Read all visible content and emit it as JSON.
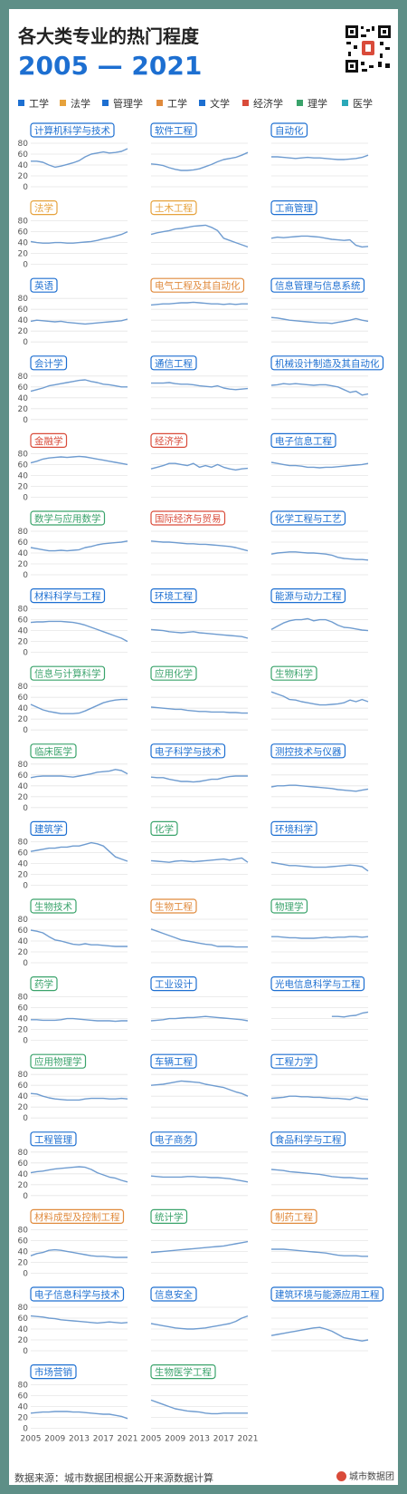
{
  "header": {
    "title": "各大类专业的热门程度",
    "years": "2005 — 2021"
  },
  "legend": [
    {
      "label": "工学",
      "color": "#1d6fd1"
    },
    {
      "label": "法学",
      "color": "#e6a23c"
    },
    {
      "label": "管理学",
      "color": "#1d6fd1"
    },
    {
      "label": "工学",
      "color": "#e08a3c"
    },
    {
      "label": "文学",
      "color": "#1d6fd1"
    },
    {
      "label": "经济学",
      "color": "#d94b3a"
    },
    {
      "label": "理学",
      "color": "#3aa36b"
    },
    {
      "label": "医学",
      "color": "#2aa8b8"
    }
  ],
  "footer": {
    "source": "数据来源：城市数据团根据公开来源数据计算",
    "brand": "城市数据团"
  },
  "chart_data": {
    "type": "line",
    "x": [
      2005,
      2006,
      2007,
      2008,
      2009,
      2010,
      2011,
      2012,
      2013,
      2014,
      2015,
      2016,
      2017,
      2018,
      2019,
      2020,
      2021
    ],
    "x_ticks": [
      "2005",
      "2009",
      "2013",
      "2017",
      "2021"
    ],
    "y_ticks": [
      "80",
      "60",
      "40",
      "20",
      "0"
    ],
    "ylim": [
      0,
      80
    ],
    "panels": [
      {
        "title": "计算机科学与技术",
        "color": "#1d6fd1",
        "values": [
          47,
          47,
          45,
          40,
          36,
          38,
          41,
          44,
          48,
          55,
          60,
          62,
          64,
          62,
          63,
          65,
          70
        ]
      },
      {
        "title": "软件工程",
        "color": "#1d6fd1",
        "values": [
          42,
          41,
          39,
          35,
          32,
          30,
          30,
          31,
          33,
          37,
          41,
          46,
          50,
          52,
          54,
          58,
          63
        ]
      },
      {
        "title": "自动化",
        "color": "#1d6fd1",
        "values": [
          55,
          55,
          54,
          53,
          52,
          53,
          54,
          53,
          53,
          52,
          51,
          50,
          50,
          51,
          52,
          54,
          58
        ]
      },
      {
        "title": "法学",
        "color": "#e6a23c",
        "values": [
          42,
          40,
          39,
          39,
          40,
          40,
          39,
          39,
          40,
          41,
          42,
          44,
          47,
          49,
          52,
          55,
          60
        ]
      },
      {
        "title": "土木工程",
        "color": "#e6a23c",
        "values": [
          55,
          58,
          60,
          62,
          65,
          66,
          68,
          70,
          71,
          72,
          68,
          62,
          48,
          44,
          40,
          36,
          32
        ]
      },
      {
        "title": "工商管理",
        "color": "#1d6fd1",
        "values": [
          48,
          50,
          49,
          50,
          51,
          52,
          52,
          51,
          50,
          48,
          46,
          45,
          44,
          45,
          35,
          32,
          33
        ]
      },
      {
        "title": "英语",
        "color": "#1d6fd1",
        "values": [
          38,
          40,
          39,
          38,
          37,
          38,
          36,
          35,
          34,
          33,
          34,
          35,
          36,
          37,
          38,
          39,
          42
        ]
      },
      {
        "title": "电气工程及其自动化",
        "color": "#e08a3c",
        "values": [
          68,
          69,
          70,
          70,
          71,
          72,
          72,
          73,
          72,
          71,
          70,
          70,
          69,
          70,
          69,
          70,
          70
        ]
      },
      {
        "title": "信息管理与信息系统",
        "color": "#1d6fd1",
        "values": [
          45,
          44,
          42,
          40,
          39,
          38,
          37,
          36,
          35,
          35,
          34,
          36,
          38,
          40,
          43,
          40,
          38
        ]
      },
      {
        "title": "会计学",
        "color": "#1d6fd1",
        "values": [
          52,
          55,
          58,
          62,
          64,
          66,
          68,
          70,
          72,
          73,
          70,
          68,
          65,
          64,
          62,
          60,
          60
        ]
      },
      {
        "title": "通信工程",
        "color": "#1d6fd1",
        "values": [
          67,
          67,
          67,
          68,
          66,
          65,
          65,
          64,
          62,
          61,
          60,
          62,
          58,
          56,
          55,
          56,
          57
        ]
      },
      {
        "title": "机械设计制造及其自动化",
        "color": "#1d6fd1",
        "values": [
          63,
          64,
          66,
          65,
          66,
          65,
          64,
          63,
          64,
          64,
          62,
          60,
          55,
          50,
          52,
          45,
          47
        ]
      },
      {
        "title": "金融学",
        "color": "#d94b3a",
        "values": [
          63,
          66,
          70,
          72,
          73,
          74,
          73,
          74,
          75,
          74,
          72,
          70,
          68,
          66,
          64,
          62,
          60
        ]
      },
      {
        "title": "经济学",
        "color": "#d94b3a",
        "values": [
          52,
          55,
          58,
          62,
          62,
          60,
          58,
          62,
          55,
          58,
          55,
          60,
          55,
          52,
          50,
          52,
          53
        ]
      },
      {
        "title": "电子信息工程",
        "color": "#1d6fd1",
        "values": [
          64,
          62,
          60,
          58,
          58,
          57,
          55,
          55,
          54,
          55,
          55,
          56,
          57,
          58,
          59,
          60,
          62
        ]
      },
      {
        "title": "数学与应用数学",
        "color": "#3aa36b",
        "values": [
          50,
          48,
          46,
          44,
          44,
          45,
          44,
          45,
          46,
          50,
          52,
          55,
          57,
          58,
          59,
          60,
          62
        ]
      },
      {
        "title": "国际经济与贸易",
        "color": "#d94b3a",
        "values": [
          62,
          61,
          60,
          60,
          59,
          58,
          57,
          57,
          56,
          56,
          55,
          54,
          53,
          52,
          50,
          47,
          44
        ]
      },
      {
        "title": "化学工程与工艺",
        "color": "#1d6fd1",
        "values": [
          38,
          40,
          41,
          42,
          42,
          41,
          40,
          40,
          39,
          38,
          36,
          32,
          30,
          29,
          28,
          28,
          27
        ]
      },
      {
        "title": "材料科学与工程",
        "color": "#1d6fd1",
        "values": [
          55,
          56,
          56,
          57,
          57,
          57,
          56,
          55,
          53,
          50,
          46,
          42,
          38,
          34,
          30,
          26,
          20
        ]
      },
      {
        "title": "环境工程",
        "color": "#1d6fd1",
        "values": [
          42,
          41,
          40,
          38,
          37,
          36,
          37,
          38,
          36,
          35,
          34,
          33,
          32,
          31,
          30,
          29,
          26
        ]
      },
      {
        "title": "能源与动力工程",
        "color": "#1d6fd1",
        "values": [
          42,
          48,
          54,
          58,
          60,
          60,
          62,
          58,
          60,
          60,
          56,
          50,
          46,
          45,
          43,
          41,
          40
        ]
      },
      {
        "title": "信息与计算科学",
        "color": "#3aa36b",
        "values": [
          47,
          42,
          37,
          34,
          32,
          30,
          30,
          30,
          31,
          35,
          40,
          45,
          50,
          53,
          55,
          56,
          56
        ]
      },
      {
        "title": "应用化学",
        "color": "#3aa36b",
        "values": [
          42,
          41,
          40,
          39,
          38,
          38,
          36,
          35,
          34,
          34,
          33,
          33,
          33,
          32,
          32,
          31,
          31
        ]
      },
      {
        "title": "生物科学",
        "color": "#3aa36b",
        "values": [
          70,
          66,
          62,
          56,
          55,
          52,
          50,
          48,
          46,
          46,
          47,
          48,
          50,
          55,
          52,
          56,
          52
        ]
      },
      {
        "title": "临床医学",
        "color": "#3aa36b",
        "values": [
          55,
          57,
          58,
          58,
          58,
          58,
          57,
          56,
          58,
          60,
          62,
          65,
          66,
          67,
          70,
          68,
          62
        ]
      },
      {
        "title": "电子科学与技术",
        "color": "#1d6fd1",
        "values": [
          56,
          55,
          55,
          52,
          50,
          48,
          48,
          47,
          48,
          50,
          52,
          52,
          55,
          57,
          58,
          58,
          58
        ]
      },
      {
        "title": "测控技术与仪器",
        "color": "#1d6fd1",
        "values": [
          38,
          40,
          40,
          41,
          41,
          40,
          39,
          38,
          37,
          36,
          35,
          33,
          32,
          31,
          30,
          32,
          34
        ]
      },
      {
        "title": "建筑学",
        "color": "#1d6fd1",
        "values": [
          62,
          64,
          66,
          68,
          68,
          70,
          70,
          72,
          72,
          75,
          78,
          76,
          72,
          62,
          52,
          48,
          44
        ]
      },
      {
        "title": "化学",
        "color": "#3aa36b",
        "values": [
          45,
          44,
          43,
          42,
          44,
          45,
          44,
          43,
          44,
          45,
          46,
          47,
          48,
          46,
          48,
          50,
          42
        ]
      },
      {
        "title": "环境科学",
        "color": "#1d6fd1",
        "values": [
          42,
          40,
          38,
          36,
          36,
          35,
          34,
          33,
          33,
          33,
          34,
          35,
          36,
          37,
          36,
          34,
          26
        ]
      },
      {
        "title": "生物技术",
        "color": "#3aa36b",
        "values": [
          60,
          58,
          55,
          48,
          42,
          40,
          37,
          34,
          33,
          35,
          33,
          33,
          32,
          31,
          30,
          30,
          30
        ]
      },
      {
        "title": "生物工程",
        "color": "#e08a3c",
        "values": [
          62,
          58,
          54,
          50,
          46,
          42,
          40,
          38,
          36,
          34,
          33,
          30,
          30,
          30,
          29,
          29,
          29
        ]
      },
      {
        "title": "物理学",
        "color": "#3aa36b",
        "values": [
          48,
          48,
          47,
          46,
          46,
          45,
          45,
          45,
          46,
          47,
          46,
          47,
          47,
          48,
          48,
          47,
          48
        ]
      },
      {
        "title": "药学",
        "color": "#3aa36b",
        "values": [
          38,
          38,
          37,
          37,
          37,
          38,
          40,
          40,
          39,
          38,
          37,
          36,
          36,
          36,
          35,
          36,
          36
        ]
      },
      {
        "title": "工业设计",
        "color": "#1d6fd1",
        "values": [
          36,
          37,
          38,
          40,
          40,
          41,
          42,
          42,
          43,
          44,
          43,
          42,
          41,
          40,
          39,
          38,
          36
        ]
      },
      {
        "title": "光电信息科学与工程",
        "color": "#1d6fd1",
        "values": [
          null,
          null,
          null,
          null,
          null,
          null,
          null,
          null,
          null,
          null,
          44,
          44,
          43,
          45,
          46,
          50,
          52
        ]
      },
      {
        "title": "应用物理学",
        "color": "#3aa36b",
        "values": [
          45,
          44,
          40,
          37,
          35,
          34,
          33,
          33,
          33,
          35,
          36,
          36,
          36,
          35,
          35,
          36,
          35
        ]
      },
      {
        "title": "车辆工程",
        "color": "#1d6fd1",
        "values": [
          60,
          61,
          62,
          64,
          66,
          68,
          67,
          66,
          65,
          62,
          60,
          58,
          56,
          52,
          48,
          45,
          40
        ]
      },
      {
        "title": "工程力学",
        "color": "#1d6fd1",
        "values": [
          36,
          37,
          38,
          40,
          40,
          39,
          39,
          38,
          38,
          37,
          36,
          36,
          35,
          34,
          38,
          35,
          34
        ]
      },
      {
        "title": "工程管理",
        "color": "#1d6fd1",
        "values": [
          42,
          44,
          45,
          47,
          49,
          50,
          51,
          52,
          53,
          52,
          48,
          42,
          38,
          34,
          32,
          28,
          25
        ]
      },
      {
        "title": "电子商务",
        "color": "#1d6fd1",
        "values": [
          36,
          35,
          34,
          34,
          34,
          34,
          35,
          35,
          34,
          34,
          33,
          33,
          32,
          31,
          29,
          27,
          25
        ]
      },
      {
        "title": "食品科学与工程",
        "color": "#1d6fd1",
        "values": [
          48,
          47,
          46,
          44,
          43,
          42,
          41,
          40,
          39,
          37,
          35,
          34,
          33,
          33,
          32,
          31,
          31
        ]
      },
      {
        "title": "材料成型及控制工程",
        "color": "#e08a3c",
        "values": [
          32,
          36,
          38,
          42,
          43,
          42,
          40,
          38,
          36,
          34,
          32,
          31,
          31,
          30,
          29,
          29,
          29
        ]
      },
      {
        "title": "统计学",
        "color": "#3aa36b",
        "values": [
          38,
          39,
          40,
          41,
          42,
          43,
          44,
          45,
          46,
          47,
          48,
          49,
          50,
          52,
          54,
          56,
          58
        ]
      },
      {
        "title": "制药工程",
        "color": "#e08a3c",
        "values": [
          44,
          44,
          44,
          43,
          42,
          41,
          40,
          39,
          38,
          37,
          35,
          33,
          32,
          32,
          32,
          31,
          31
        ]
      },
      {
        "title": "电子信息科学与技术",
        "color": "#1d6fd1",
        "values": [
          64,
          63,
          62,
          60,
          59,
          57,
          56,
          55,
          54,
          53,
          52,
          51,
          52,
          53,
          52,
          51,
          52
        ]
      },
      {
        "title": "信息安全",
        "color": "#1d6fd1",
        "values": [
          50,
          48,
          46,
          44,
          42,
          41,
          40,
          40,
          41,
          42,
          44,
          46,
          48,
          50,
          54,
          60,
          64
        ]
      },
      {
        "title": "建筑环境与能源应用工程",
        "color": "#1d6fd1",
        "values": [
          28,
          30,
          32,
          34,
          36,
          38,
          40,
          42,
          43,
          40,
          36,
          30,
          24,
          22,
          20,
          18,
          20
        ]
      },
      {
        "title": "市场营销",
        "color": "#1d6fd1",
        "values": [
          28,
          29,
          30,
          30,
          31,
          31,
          31,
          30,
          30,
          29,
          28,
          27,
          26,
          26,
          24,
          22,
          18
        ]
      },
      {
        "title": "生物医学工程",
        "color": "#3aa36b",
        "values": [
          52,
          48,
          44,
          40,
          36,
          34,
          32,
          31,
          30,
          28,
          27,
          27,
          28,
          28,
          28,
          28,
          28
        ]
      }
    ]
  }
}
